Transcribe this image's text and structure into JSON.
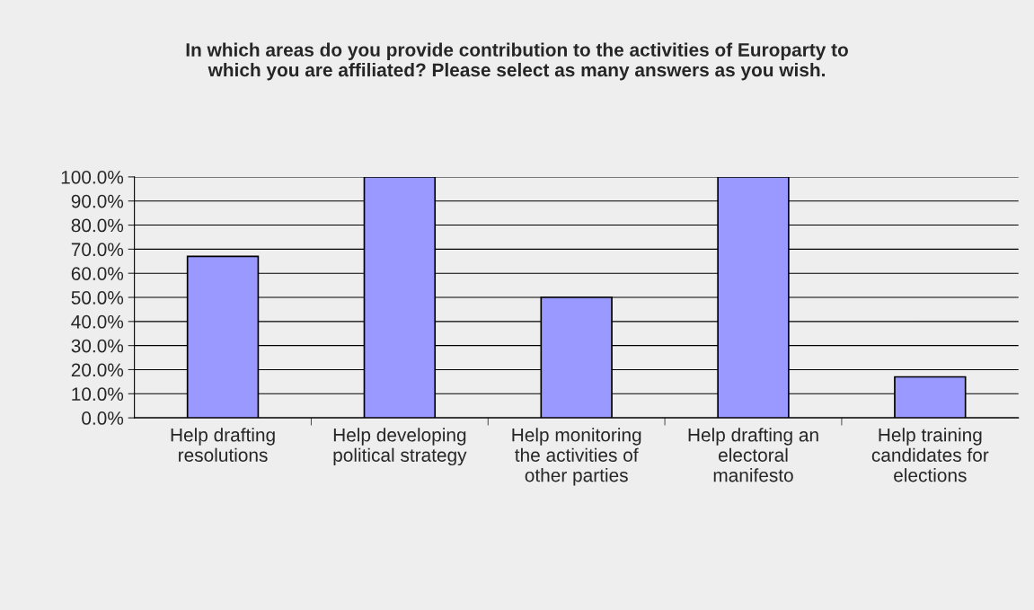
{
  "chart_data": {
    "type": "bar",
    "title": "In which areas do you provide contribution to the activities of Europarty to\nwhich you are affiliated? Please select as many answers as you wish.",
    "categories": [
      "Help drafting\nresolutions",
      "Help developing\npolitical strategy",
      "Help monitoring\nthe activities of\nother parties",
      "Help drafting an\nelectoral\nmanifesto",
      "Help training\ncandidates for\nelections"
    ],
    "values": [
      67,
      100,
      50,
      100,
      17
    ],
    "color": "#9999ff",
    "ylim": [
      0,
      100
    ],
    "yticks": [
      {
        "value": 0,
        "label": "0.0%"
      },
      {
        "value": 10,
        "label": "10.0%"
      },
      {
        "value": 20,
        "label": "20.0%"
      },
      {
        "value": 30,
        "label": "30.0%"
      },
      {
        "value": 40,
        "label": "40.0%"
      },
      {
        "value": 50,
        "label": "50.0%"
      },
      {
        "value": 60,
        "label": "60.0%"
      },
      {
        "value": 70,
        "label": "70.0%"
      },
      {
        "value": 80,
        "label": "80.0%"
      },
      {
        "value": 90,
        "label": "90.0%"
      },
      {
        "value": 100,
        "label": "100.0%"
      }
    ],
    "grid": "y",
    "legend": false
  }
}
